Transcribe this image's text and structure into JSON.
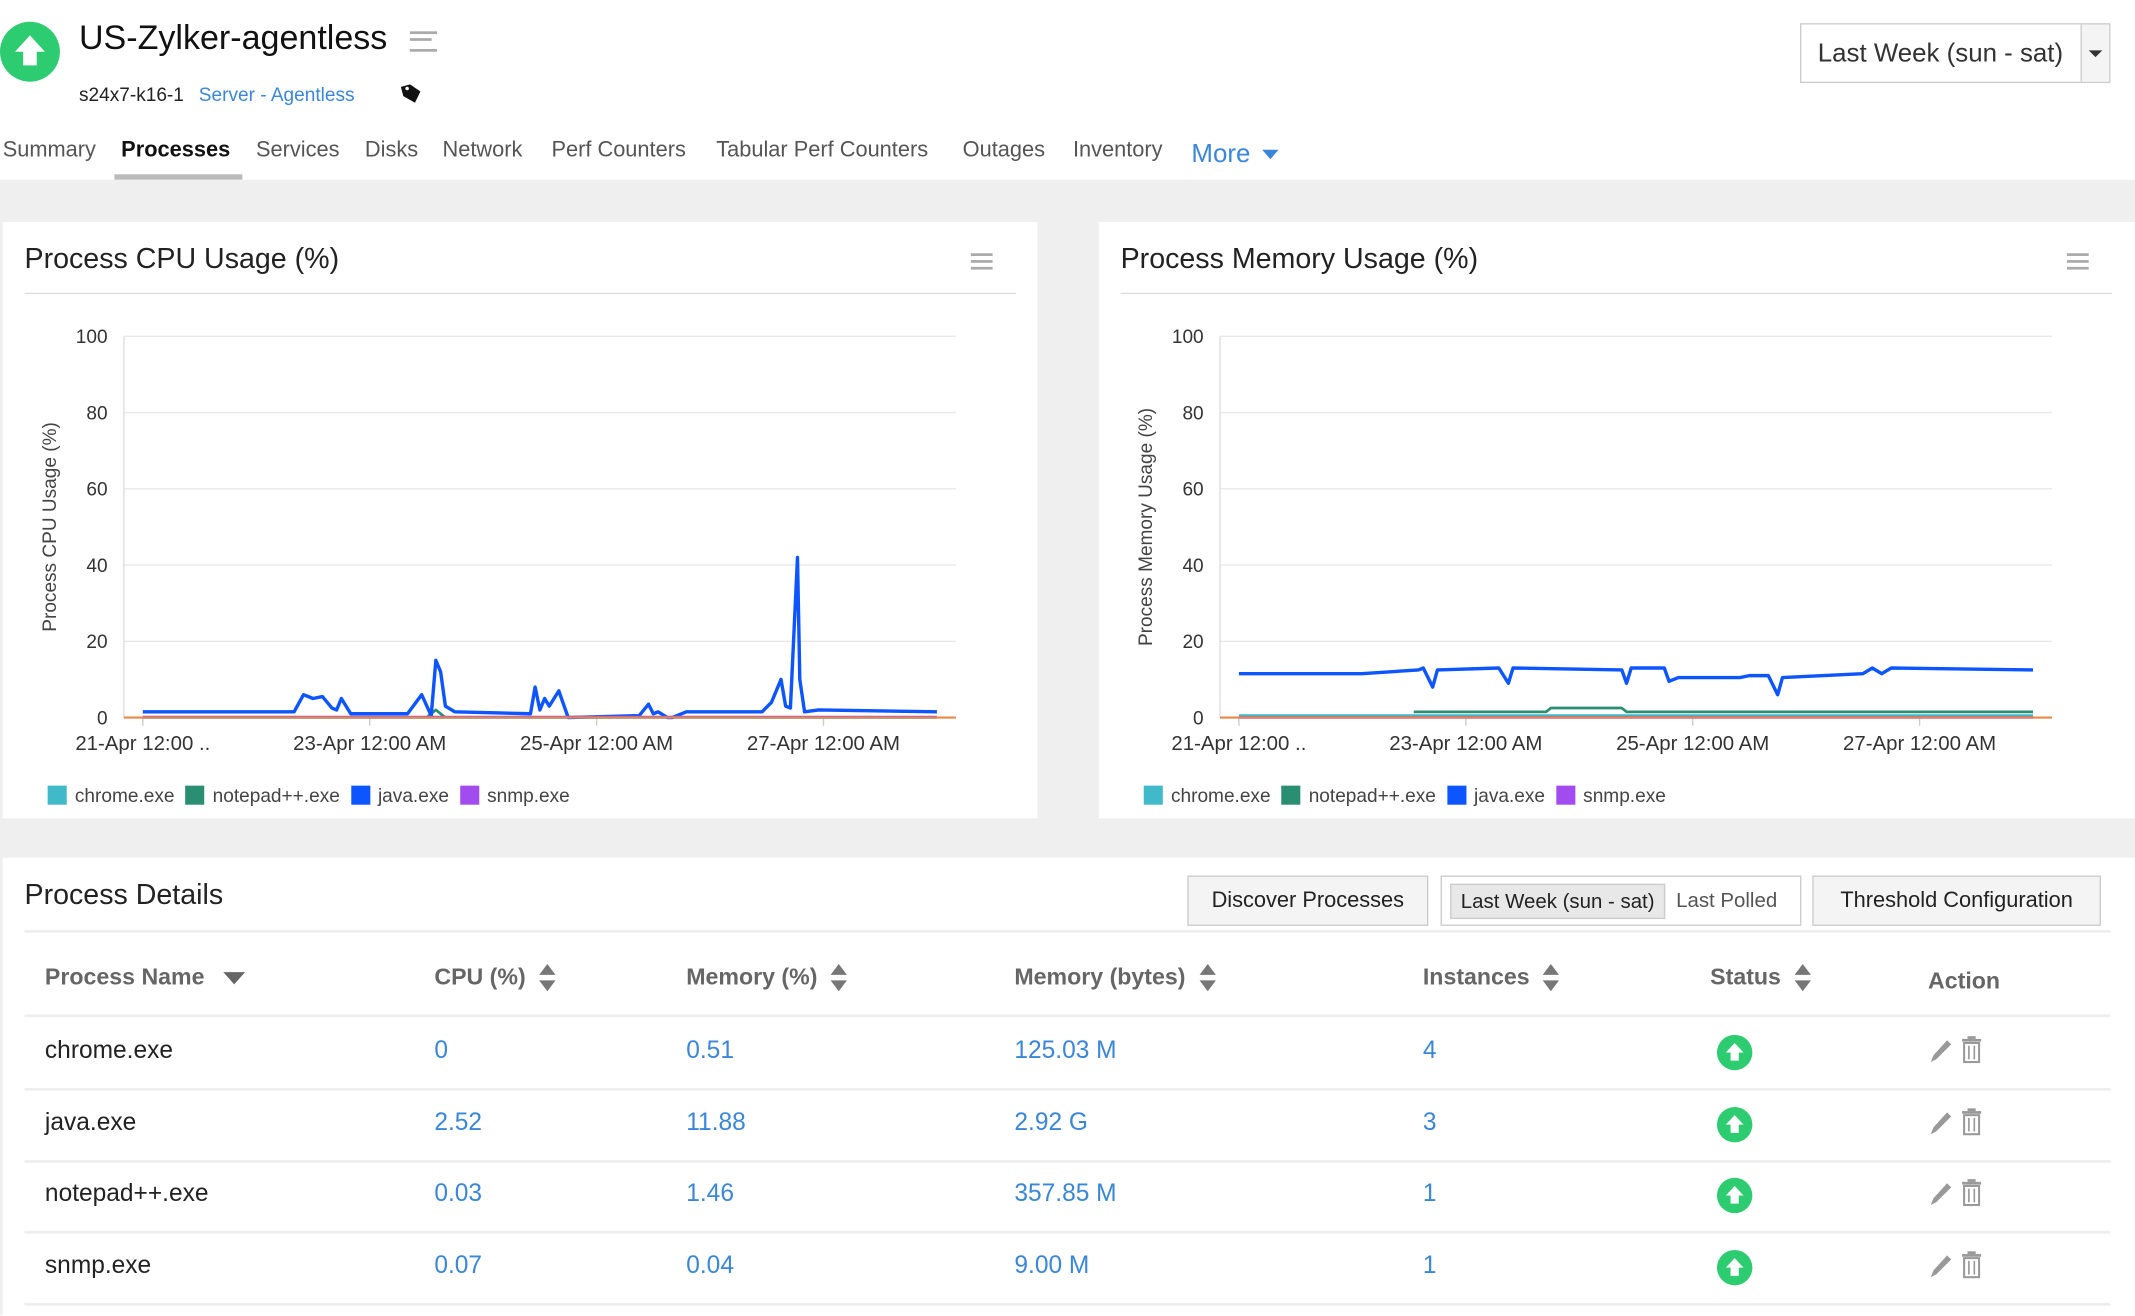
{
  "header": {
    "title": "US-Zylker-agentless",
    "host": "s24x7-k16-1",
    "type": "Server - Agentless",
    "period": "Last Week (sun - sat)",
    "status_icon": "arrow-up-circle-icon",
    "status_color": "#2ecc71"
  },
  "tabs": [
    {
      "label": "Summary"
    },
    {
      "label": "Processes",
      "active": true
    },
    {
      "label": "Services"
    },
    {
      "label": "Disks"
    },
    {
      "label": "Network"
    },
    {
      "label": "Perf Counters"
    },
    {
      "label": "Tabular Perf Counters"
    },
    {
      "label": "Outages"
    },
    {
      "label": "Inventory"
    },
    {
      "label": "More"
    }
  ],
  "colors": {
    "chrome.exe": "#40b9c8",
    "notepad++.exe": "#2a8f72",
    "java.exe": "#0d55ff",
    "snmp.exe": "#a24cf0",
    "baseline": "#e8874a",
    "link": "#3a86d8"
  },
  "chart_data": [
    {
      "type": "line",
      "title": "Process CPU Usage (%)",
      "ylabel": "Process CPU Usage (%)",
      "ylim": [
        0,
        100
      ],
      "yticks": [
        0,
        20,
        40,
        60,
        80,
        100
      ],
      "xticks": [
        "21-Apr 12:00 AM",
        "23-Apr 12:00 AM",
        "25-Apr 12:00 AM",
        "27-Apr 12:00 AM"
      ],
      "xtick_labels": [
        "21-Apr 12:00 ..",
        "23-Apr 12:00 AM",
        "25-Apr 12:00 AM",
        "27-Apr 12:00 AM"
      ],
      "xlim": [
        "20-Apr 20:00",
        "28-Apr 04:00"
      ],
      "grid": true,
      "legend": "bottom-left",
      "series": [
        {
          "name": "chrome.exe",
          "points": [
            [
              "21-Apr 00:00",
              0
            ],
            [
              "28-Apr 00:00",
              0
            ]
          ]
        },
        {
          "name": "notepad++.exe",
          "points": [
            [
              "23-Apr 12:00",
              0
            ],
            [
              "23-Apr 14:00",
              2
            ],
            [
              "23-Apr 16:00",
              0
            ]
          ]
        },
        {
          "name": "java.exe",
          "points": [
            [
              "21-Apr 00:00",
              1.5
            ],
            [
              "22-Apr 08:00",
              1.5
            ],
            [
              "22-Apr 10:00",
              6
            ],
            [
              "22-Apr 12:00",
              5
            ],
            [
              "22-Apr 14:00",
              5.5
            ],
            [
              "22-Apr 16:00",
              2.5
            ],
            [
              "22-Apr 17:00",
              2
            ],
            [
              "22-Apr 18:00",
              5
            ],
            [
              "22-Apr 20:00",
              1
            ],
            [
              "23-Apr 08:00",
              1
            ],
            [
              "23-Apr 11:00",
              6
            ],
            [
              "23-Apr 13:00",
              0.5
            ],
            [
              "23-Apr 14:00",
              15
            ],
            [
              "23-Apr 15:00",
              12
            ],
            [
              "23-Apr 16:00",
              3
            ],
            [
              "23-Apr 18:00",
              1.5
            ],
            [
              "24-Apr 10:00",
              1
            ],
            [
              "24-Apr 11:00",
              8
            ],
            [
              "24-Apr 12:00",
              2
            ],
            [
              "24-Apr 13:00",
              5
            ],
            [
              "24-Apr 14:00",
              3
            ],
            [
              "24-Apr 16:00",
              7
            ],
            [
              "24-Apr 18:00",
              0
            ],
            [
              "25-Apr 09:00",
              0.5
            ],
            [
              "25-Apr 11:00",
              3.5
            ],
            [
              "25-Apr 12:00",
              1
            ],
            [
              "25-Apr 13:00",
              1.5
            ],
            [
              "25-Apr 15:00",
              0
            ],
            [
              "25-Apr 16:00",
              0
            ],
            [
              "25-Apr 19:00",
              1.5
            ],
            [
              "26-Apr 11:00",
              1.5
            ],
            [
              "26-Apr 13:00",
              4
            ],
            [
              "26-Apr 15:00",
              10
            ],
            [
              "26-Apr 16:00",
              3
            ],
            [
              "26-Apr 17:00",
              2.5
            ],
            [
              "26-Apr 18:30",
              42
            ],
            [
              "26-Apr 19:00",
              10
            ],
            [
              "26-Apr 20:00",
              1.5
            ],
            [
              "26-Apr 23:00",
              2
            ],
            [
              "28-Apr 00:00",
              1.5
            ]
          ]
        },
        {
          "name": "snmp.exe",
          "points": [
            [
              "21-Apr 00:00",
              0.1
            ],
            [
              "28-Apr 00:00",
              0.1
            ]
          ]
        }
      ]
    },
    {
      "type": "line",
      "title": "Process Memory Usage (%)",
      "ylabel": "Process Memory Usage (%)",
      "ylim": [
        0,
        100
      ],
      "yticks": [
        0,
        20,
        40,
        60,
        80,
        100
      ],
      "xticks": [
        "21-Apr 12:00 AM",
        "23-Apr 12:00 AM",
        "25-Apr 12:00 AM",
        "27-Apr 12:00 AM"
      ],
      "xtick_labels": [
        "21-Apr 12:00 ..",
        "23-Apr 12:00 AM",
        "25-Apr 12:00 AM",
        "27-Apr 12:00 AM"
      ],
      "xlim": [
        "20-Apr 20:00",
        "28-Apr 04:00"
      ],
      "grid": true,
      "legend": "bottom-left",
      "series": [
        {
          "name": "chrome.exe",
          "points": [
            [
              "21-Apr 00:00",
              0.5
            ],
            [
              "28-Apr 00:00",
              0.5
            ]
          ]
        },
        {
          "name": "notepad++.exe",
          "points": [
            [
              "22-Apr 13:00",
              1.5
            ],
            [
              "23-Apr 17:00",
              1.5
            ],
            [
              "23-Apr 18:00",
              2.5
            ],
            [
              "24-Apr 09:00",
              2.5
            ],
            [
              "24-Apr 10:00",
              1.5
            ],
            [
              "28-Apr 00:00",
              1.5
            ]
          ]
        },
        {
          "name": "java.exe",
          "points": [
            [
              "21-Apr 00:00",
              11.5
            ],
            [
              "22-Apr 02:00",
              11.5
            ],
            [
              "22-Apr 14:00",
              12.5
            ],
            [
              "22-Apr 15:00",
              13
            ],
            [
              "22-Apr 17:00",
              8
            ],
            [
              "22-Apr 18:00",
              12.5
            ],
            [
              "23-Apr 07:00",
              13
            ],
            [
              "23-Apr 09:00",
              9
            ],
            [
              "23-Apr 10:00",
              13
            ],
            [
              "24-Apr 09:00",
              12.5
            ],
            [
              "24-Apr 10:00",
              9
            ],
            [
              "24-Apr 11:00",
              13
            ],
            [
              "24-Apr 18:00",
              13
            ],
            [
              "24-Apr 19:00",
              9.5
            ],
            [
              "24-Apr 21:00",
              10.5
            ],
            [
              "25-Apr 10:00",
              10.5
            ],
            [
              "25-Apr 12:00",
              11
            ],
            [
              "25-Apr 16:00",
              11
            ],
            [
              "25-Apr 18:00",
              6
            ],
            [
              "25-Apr 19:00",
              10.5
            ],
            [
              "26-Apr 12:00",
              11.5
            ],
            [
              "26-Apr 14:00",
              13
            ],
            [
              "26-Apr 16:00",
              11.5
            ],
            [
              "26-Apr 18:00",
              13
            ],
            [
              "28-Apr 00:00",
              12.5
            ]
          ]
        },
        {
          "name": "snmp.exe",
          "points": [
            [
              "21-Apr 00:00",
              0.04
            ],
            [
              "28-Apr 00:00",
              0.04
            ]
          ]
        }
      ]
    }
  ],
  "details": {
    "title": "Process Details",
    "discover": "Discover Processes",
    "period_selected": "Last Week (sun - sat)",
    "period_other": "Last Polled",
    "threshold": "Threshold Configuration",
    "columns": [
      "Process Name",
      "CPU (%)",
      "Memory (%)",
      "Memory (bytes)",
      "Instances",
      "Status",
      "Action"
    ],
    "rows": [
      {
        "name": "chrome.exe",
        "cpu": "0",
        "mem": "0.51",
        "bytes": "125.03 M",
        "inst": "4",
        "status": "up"
      },
      {
        "name": "java.exe",
        "cpu": "2.52",
        "mem": "11.88",
        "bytes": "2.92 G",
        "inst": "3",
        "status": "up"
      },
      {
        "name": "notepad++.exe",
        "cpu": "0.03",
        "mem": "1.46",
        "bytes": "357.85 M",
        "inst": "1",
        "status": "up"
      },
      {
        "name": "snmp.exe",
        "cpu": "0.07",
        "mem": "0.04",
        "bytes": "9.00 M",
        "inst": "1",
        "status": "up"
      }
    ]
  }
}
